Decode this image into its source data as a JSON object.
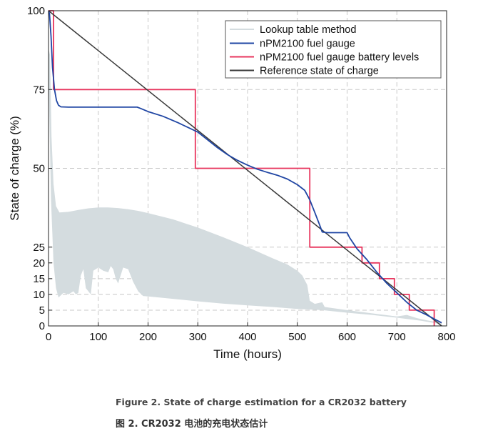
{
  "chart_data": {
    "type": "line",
    "xlabel": "Time (hours)",
    "ylabel": "State of charge (%)",
    "xlim": [
      0,
      800
    ],
    "ylim": [
      0,
      100
    ],
    "xticks": [
      "0",
      "100",
      "200",
      "300",
      "400",
      "500",
      "600",
      "700",
      "800"
    ],
    "yticks": [
      "0",
      "5",
      "10",
      "15",
      "20",
      "25",
      "50",
      "75",
      "100"
    ],
    "grid": true,
    "legend_position": "top-right",
    "series": [
      {
        "name": "Lookup table method",
        "color": "#d4dcdf",
        "style": "band",
        "upper": [
          [
            0,
            88
          ],
          [
            3,
            86
          ],
          [
            6,
            60
          ],
          [
            10,
            45
          ],
          [
            15,
            38
          ],
          [
            22,
            36
          ],
          [
            40,
            36.2
          ],
          [
            60,
            36.8
          ],
          [
            80,
            37.3
          ],
          [
            100,
            37.6
          ],
          [
            120,
            37.6
          ],
          [
            140,
            37.4
          ],
          [
            160,
            37
          ],
          [
            180,
            36.5
          ],
          [
            200,
            35.8
          ],
          [
            250,
            33.8
          ],
          [
            300,
            31.2
          ],
          [
            350,
            28.2
          ],
          [
            400,
            25
          ],
          [
            450,
            21.5
          ],
          [
            480,
            19.5
          ],
          [
            500,
            17.5
          ],
          [
            510,
            16
          ],
          [
            520,
            13
          ],
          [
            525,
            8
          ],
          [
            535,
            7
          ],
          [
            550,
            7.5
          ],
          [
            555,
            6
          ],
          [
            600,
            5
          ],
          [
            650,
            4
          ],
          [
            700,
            3
          ],
          [
            720,
            3.5
          ],
          [
            740,
            2.5
          ],
          [
            760,
            1.8
          ],
          [
            790,
            1
          ]
        ],
        "lower": [
          [
            0,
            80
          ],
          [
            5,
            40
          ],
          [
            10,
            20
          ],
          [
            15,
            12
          ],
          [
            20,
            9
          ],
          [
            30,
            10.5
          ],
          [
            40,
            10
          ],
          [
            50,
            11
          ],
          [
            55,
            10
          ],
          [
            60,
            10.5
          ],
          [
            65,
            16
          ],
          [
            70,
            18
          ],
          [
            75,
            12
          ],
          [
            85,
            10
          ],
          [
            90,
            17.5
          ],
          [
            100,
            18.5
          ],
          [
            110,
            17.5
          ],
          [
            120,
            17
          ],
          [
            125,
            19
          ],
          [
            130,
            18
          ],
          [
            135,
            15
          ],
          [
            140,
            13.5
          ],
          [
            145,
            16
          ],
          [
            150,
            18.5
          ],
          [
            160,
            18
          ],
          [
            170,
            14
          ],
          [
            180,
            11
          ],
          [
            190,
            9.5
          ],
          [
            210,
            9.2
          ],
          [
            250,
            8.6
          ],
          [
            300,
            7.8
          ],
          [
            350,
            7.1
          ],
          [
            400,
            6.5
          ],
          [
            450,
            6
          ],
          [
            500,
            5.4
          ],
          [
            550,
            5
          ],
          [
            600,
            4.2
          ],
          [
            650,
            3.5
          ],
          [
            700,
            2.6
          ],
          [
            750,
            1.6
          ],
          [
            790,
            0.5
          ]
        ]
      },
      {
        "name": "nPM2100 fuel gauge",
        "color": "#1f45a3",
        "points": [
          [
            0,
            100
          ],
          [
            2,
            99
          ],
          [
            5,
            92
          ],
          [
            8,
            82
          ],
          [
            12,
            75
          ],
          [
            16,
            71.5
          ],
          [
            20,
            70
          ],
          [
            25,
            69.5
          ],
          [
            40,
            69.4
          ],
          [
            100,
            69.4
          ],
          [
            150,
            69.4
          ],
          [
            178,
            69.4
          ],
          [
            185,
            69
          ],
          [
            200,
            68
          ],
          [
            230,
            66.5
          ],
          [
            260,
            64.5
          ],
          [
            280,
            63
          ],
          [
            300,
            61.5
          ],
          [
            320,
            59
          ],
          [
            340,
            56.5
          ],
          [
            360,
            54.3
          ],
          [
            380,
            52.5
          ],
          [
            400,
            51
          ],
          [
            420,
            49.7
          ],
          [
            440,
            48.7
          ],
          [
            460,
            47.8
          ],
          [
            480,
            46.6
          ],
          [
            500,
            44.8
          ],
          [
            515,
            43
          ],
          [
            525,
            40
          ],
          [
            535,
            36
          ],
          [
            545,
            32
          ],
          [
            550,
            29.8
          ],
          [
            560,
            29.6
          ],
          [
            600,
            29.6
          ],
          [
            605,
            28
          ],
          [
            620,
            24.5
          ],
          [
            640,
            21
          ],
          [
            660,
            17
          ],
          [
            680,
            13.5
          ],
          [
            700,
            10.5
          ],
          [
            720,
            7.5
          ],
          [
            740,
            5
          ],
          [
            760,
            3.5
          ],
          [
            780,
            1.8
          ],
          [
            790,
            1
          ]
        ]
      },
      {
        "name": "nPM2100 fuel gauge battery levels",
        "color": "#e8365e",
        "points": [
          [
            0,
            100
          ],
          [
            10,
            100
          ],
          [
            10,
            75
          ],
          [
            295,
            75
          ],
          [
            295,
            50
          ],
          [
            525,
            50
          ],
          [
            525,
            25
          ],
          [
            630,
            25
          ],
          [
            630,
            20
          ],
          [
            665,
            20
          ],
          [
            665,
            15
          ],
          [
            695,
            15
          ],
          [
            695,
            10
          ],
          [
            725,
            10
          ],
          [
            725,
            5
          ],
          [
            775,
            5
          ],
          [
            775,
            0
          ]
        ]
      },
      {
        "name": "Reference state of charge",
        "color": "#3a3a3a",
        "points": [
          [
            0,
            100
          ],
          [
            790,
            0
          ]
        ]
      }
    ]
  },
  "captions": {
    "english": "Figure 2. State of charge estimation for a CR2032 battery",
    "chinese": "图 2. CR2032 电池的充电状态估计"
  }
}
